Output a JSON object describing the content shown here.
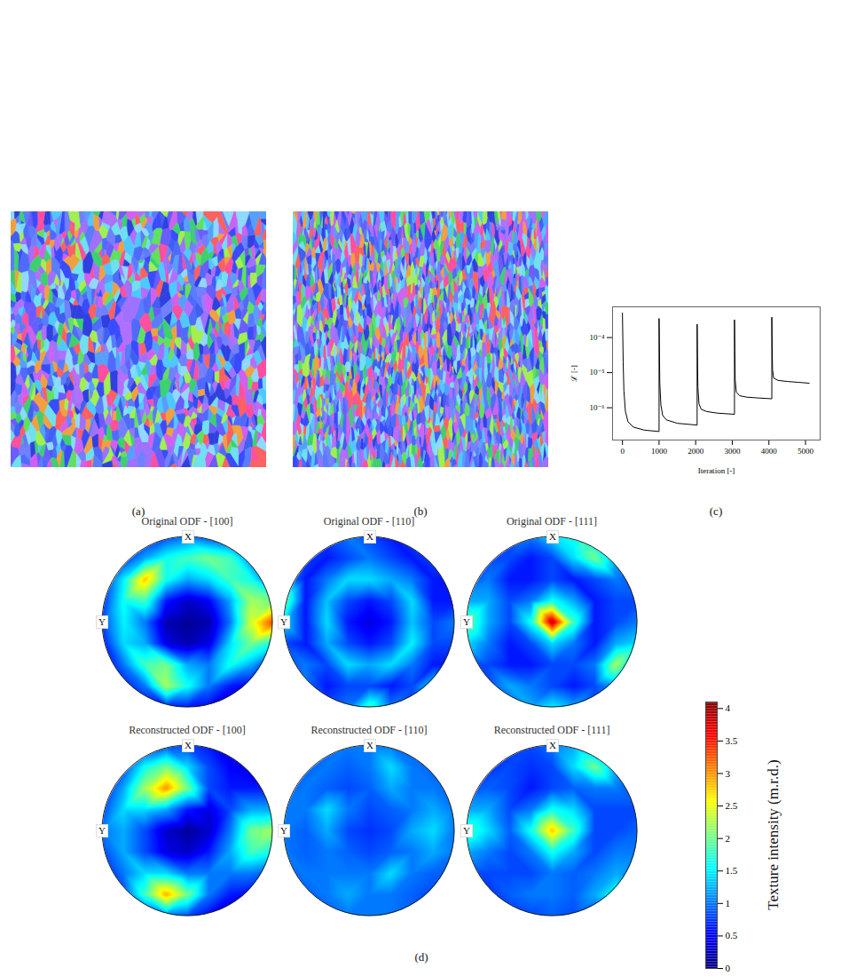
{
  "chart_data": [
    {
      "type": "image",
      "label": "(a)"
    },
    {
      "type": "image",
      "label": "(b)"
    },
    {
      "type": "line",
      "label": "(c)",
      "x_label": "Iteration [-]",
      "y_label": "ℒ [-]",
      "log": "y",
      "grid": false,
      "color": "#000000",
      "xlim": [
        -270,
        5400
      ],
      "ylim": [
        1.2e-07,
        0.00075
      ],
      "xticks": [
        0,
        1000,
        2000,
        3000,
        4000,
        5000
      ],
      "yticks": [
        {
          "value": 1e-06,
          "label": "10⁻⁶"
        },
        {
          "value": 1e-05,
          "label": "10⁻⁵"
        },
        {
          "value": 0.0001,
          "label": "10⁻⁴"
        }
      ],
      "x": [
        0,
        10,
        20,
        40,
        80,
        150,
        300,
        600,
        1000,
        1000,
        1010,
        1020,
        1050,
        1100,
        1200,
        1500,
        2040,
        2040,
        2050,
        2060,
        2090,
        2150,
        2300,
        2600,
        3060,
        3060,
        3070,
        3080,
        3110,
        3200,
        3400,
        3700,
        4080,
        4080,
        4090,
        4100,
        4130,
        4250,
        4500,
        4800,
        5100
      ],
      "values": [
        0.0005,
        0.0001,
        2e-05,
        3e-06,
        8e-07,
        4e-07,
        2.8e-07,
        2.3e-07,
        2.1e-07,
        0.00035,
        5e-05,
        5e-06,
        1.2e-06,
        6e-07,
        4.5e-07,
        3.6e-07,
        3.2e-07,
        0.00024,
        3e-05,
        4e-06,
        1.3e-06,
        9e-07,
        7.8e-07,
        7e-07,
        6.5e-07,
        0.00032,
        4e-05,
        6e-06,
        2.8e-06,
        2.2e-06,
        2e-06,
        1.9e-06,
        1.8e-06,
        0.00038,
        5e-05,
        1.2e-05,
        7e-06,
        6e-06,
        5.6e-06,
        5.3e-06,
        5e-06
      ]
    },
    {
      "type": "heatmap",
      "label": "(d)",
      "pole_labels": [
        "X",
        "Y"
      ],
      "panels": [
        {
          "title": "Original ODF - [100]",
          "cells": [
            [
              0.5,
              0.5,
              0.6,
              0.8,
              1.0,
              0.8,
              0.6,
              0.5,
              0.5
            ],
            [
              0.5,
              0.7,
              1.2,
              1.6,
              1.8,
              2.0,
              1.8,
              1.0,
              0.5
            ],
            [
              0.6,
              1.5,
              2.8,
              1.6,
              1.2,
              1.4,
              1.8,
              1.6,
              0.8
            ],
            [
              0.7,
              1.6,
              1.8,
              0.6,
              0.3,
              0.5,
              1.2,
              2.2,
              2.0
            ],
            [
              0.8,
              1.5,
              1.0,
              0.2,
              0.1,
              0.2,
              1.0,
              2.4,
              3.3
            ],
            [
              0.6,
              1.4,
              1.2,
              0.4,
              0.2,
              0.4,
              1.4,
              2.0,
              1.6
            ],
            [
              0.4,
              1.0,
              1.8,
              2.0,
              1.2,
              1.0,
              1.6,
              1.2,
              0.6
            ],
            [
              0.3,
              0.6,
              1.0,
              2.2,
              1.6,
              1.0,
              0.6,
              0.5,
              0.4
            ],
            [
              0.3,
              0.4,
              0.5,
              0.6,
              0.6,
              0.5,
              0.4,
              0.3,
              0.3
            ]
          ]
        },
        {
          "title": "Original ODF - [110]",
          "cells": [
            [
              0.6,
              0.6,
              0.8,
              1.0,
              0.8,
              0.6,
              0.8,
              1.4,
              1.0
            ],
            [
              0.6,
              0.8,
              0.6,
              0.8,
              1.0,
              0.8,
              0.6,
              0.8,
              0.8
            ],
            [
              1.2,
              0.6,
              1.0,
              1.4,
              1.4,
              1.2,
              1.0,
              0.6,
              0.6
            ],
            [
              2.0,
              0.6,
              1.3,
              0.8,
              0.6,
              0.8,
              1.4,
              0.6,
              0.6
            ],
            [
              1.4,
              0.6,
              1.4,
              0.6,
              0.4,
              0.6,
              1.3,
              0.8,
              1.0
            ],
            [
              0.8,
              0.6,
              1.2,
              0.8,
              0.6,
              0.8,
              1.5,
              0.8,
              0.8
            ],
            [
              0.8,
              1.0,
              0.8,
              1.4,
              1.2,
              1.4,
              1.0,
              0.6,
              0.6
            ],
            [
              1.4,
              1.0,
              0.6,
              0.8,
              0.8,
              0.6,
              0.8,
              1.4,
              1.0
            ],
            [
              0.8,
              0.8,
              0.8,
              1.0,
              1.8,
              1.0,
              0.8,
              0.8,
              0.8
            ]
          ]
        },
        {
          "title": "Original ODF - [111]",
          "cells": [
            [
              0.6,
              0.6,
              0.8,
              1.0,
              1.4,
              1.6,
              1.4,
              0.8,
              0.6
            ],
            [
              0.6,
              0.8,
              0.8,
              0.6,
              0.8,
              1.4,
              2.0,
              1.2,
              0.6
            ],
            [
              0.8,
              1.0,
              0.6,
              0.6,
              0.8,
              0.6,
              0.8,
              1.0,
              0.8
            ],
            [
              1.2,
              1.2,
              0.8,
              1.0,
              1.6,
              1.2,
              0.6,
              0.8,
              0.8
            ],
            [
              2.0,
              1.2,
              0.8,
              1.6,
              3.9,
              1.8,
              0.6,
              0.8,
              1.0
            ],
            [
              1.4,
              1.0,
              0.6,
              0.8,
              1.4,
              1.0,
              0.6,
              1.2,
              1.4
            ],
            [
              0.8,
              0.8,
              0.6,
              0.6,
              0.8,
              0.8,
              1.0,
              2.2,
              1.2
            ],
            [
              0.6,
              0.8,
              1.2,
              1.0,
              0.8,
              0.6,
              0.8,
              1.2,
              0.8
            ],
            [
              0.6,
              0.6,
              0.8,
              1.2,
              1.5,
              1.2,
              0.8,
              0.6,
              0.6
            ]
          ]
        },
        {
          "title": "Reconstructed ODF - [100]",
          "cells": [
            [
              0.3,
              0.4,
              0.6,
              0.8,
              0.8,
              0.6,
              0.4,
              0.3,
              0.3
            ],
            [
              0.4,
              0.8,
              1.6,
              2.0,
              1.4,
              0.8,
              0.5,
              0.4,
              0.4
            ],
            [
              0.6,
              1.2,
              2.2,
              3.0,
              2.0,
              0.8,
              0.6,
              0.6,
              0.6
            ],
            [
              0.8,
              1.4,
              1.4,
              1.2,
              0.6,
              0.4,
              0.8,
              1.2,
              1.2
            ],
            [
              1.0,
              1.2,
              0.8,
              0.3,
              0.1,
              0.3,
              1.0,
              2.0,
              2.2
            ],
            [
              0.8,
              1.2,
              0.8,
              0.4,
              0.3,
              0.6,
              1.2,
              1.8,
              1.6
            ],
            [
              0.6,
              1.0,
              1.4,
              1.4,
              1.0,
              1.0,
              1.0,
              1.0,
              0.8
            ],
            [
              0.4,
              0.8,
              1.8,
              2.9,
              2.0,
              1.0,
              0.6,
              0.5,
              0.4
            ],
            [
              0.3,
              0.4,
              0.6,
              1.0,
              0.8,
              0.5,
              0.4,
              0.3,
              0.3
            ]
          ]
        },
        {
          "title": "Reconstructed ODF - [110]",
          "cells": [
            [
              0.8,
              0.8,
              0.9,
              1.0,
              1.0,
              1.0,
              0.9,
              0.8,
              0.8
            ],
            [
              0.8,
              0.9,
              1.0,
              0.9,
              1.0,
              1.4,
              1.0,
              0.9,
              0.8
            ],
            [
              0.9,
              1.0,
              0.9,
              0.8,
              0.9,
              1.2,
              1.0,
              1.0,
              0.9
            ],
            [
              1.0,
              1.0,
              1.4,
              1.0,
              0.8,
              0.9,
              1.0,
              1.2,
              1.0
            ],
            [
              1.0,
              0.9,
              1.2,
              0.8,
              0.7,
              0.8,
              1.2,
              1.4,
              1.0
            ],
            [
              1.0,
              0.9,
              1.0,
              0.9,
              0.8,
              0.9,
              1.0,
              1.2,
              1.0
            ],
            [
              0.9,
              1.0,
              1.0,
              1.0,
              1.0,
              1.4,
              1.0,
              0.9,
              0.9
            ],
            [
              0.8,
              0.9,
              1.0,
              1.2,
              1.0,
              1.0,
              0.9,
              0.8,
              0.8
            ],
            [
              0.8,
              0.8,
              0.9,
              1.0,
              1.0,
              1.0,
              0.9,
              0.8,
              0.8
            ]
          ]
        },
        {
          "title": "Reconstructed ODF - [111]",
          "cells": [
            [
              0.6,
              0.6,
              0.7,
              0.8,
              1.0,
              1.2,
              1.0,
              0.7,
              0.6
            ],
            [
              0.6,
              0.7,
              0.8,
              0.7,
              0.8,
              1.4,
              2.0,
              1.2,
              0.7
            ],
            [
              0.8,
              0.9,
              0.8,
              0.6,
              0.8,
              0.9,
              1.0,
              1.0,
              0.8
            ],
            [
              1.2,
              1.2,
              0.8,
              1.0,
              1.6,
              1.4,
              0.8,
              0.8,
              0.8
            ],
            [
              1.8,
              1.4,
              0.9,
              1.6,
              2.8,
              1.8,
              0.8,
              0.8,
              0.9
            ],
            [
              1.2,
              1.0,
              0.8,
              1.0,
              1.6,
              1.2,
              0.8,
              1.0,
              1.0
            ],
            [
              0.8,
              0.8,
              0.8,
              0.8,
              1.0,
              0.9,
              1.0,
              1.2,
              1.0
            ],
            [
              0.6,
              0.7,
              0.9,
              1.0,
              1.0,
              0.9,
              1.2,
              1.6,
              0.8
            ],
            [
              0.6,
              0.6,
              0.7,
              0.8,
              0.9,
              0.8,
              0.8,
              0.7,
              0.6
            ]
          ]
        }
      ],
      "colorbar": {
        "label": "Texture intensity (m.r.d.)",
        "range": [
          0,
          4.1
        ],
        "ticks": [
          0,
          0.5,
          1,
          1.5,
          2,
          2.5,
          3,
          3.5,
          4
        ]
      }
    }
  ]
}
